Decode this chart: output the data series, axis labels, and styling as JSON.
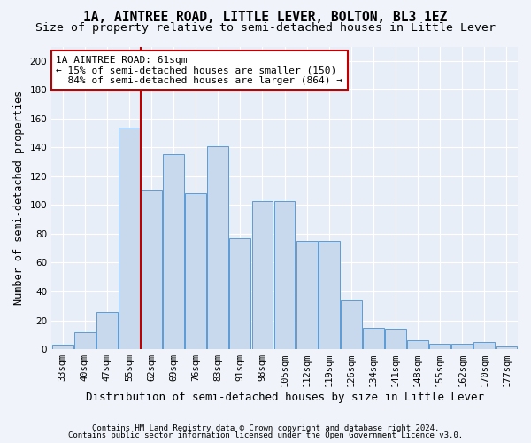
{
  "title_line1": "1A, AINTREE ROAD, LITTLE LEVER, BOLTON, BL3 1EZ",
  "title_line2": "Size of property relative to semi-detached houses in Little Lever",
  "xlabel": "Distribution of semi-detached houses by size in Little Lever",
  "ylabel": "Number of semi-detached properties",
  "footnote1": "Contains HM Land Registry data © Crown copyright and database right 2024.",
  "footnote2": "Contains public sector information licensed under the Open Government Licence v3.0.",
  "bar_labels": [
    "33sqm",
    "40sqm",
    "47sqm",
    "55sqm",
    "62sqm",
    "69sqm",
    "76sqm",
    "83sqm",
    "91sqm",
    "98sqm",
    "105sqm",
    "112sqm",
    "119sqm",
    "126sqm",
    "134sqm",
    "141sqm",
    "148sqm",
    "155sqm",
    "162sqm",
    "170sqm",
    "177sqm"
  ],
  "bar_values": [
    3,
    12,
    26,
    154,
    110,
    135,
    108,
    141,
    77,
    103,
    103,
    75,
    75,
    34,
    15,
    14,
    6,
    4,
    4,
    5,
    2
  ],
  "bar_color": "#c9d9ed",
  "bar_edge_color": "#5b9bd5",
  "property_label": "1A AINTREE ROAD: 61sqm",
  "pct_smaller": 15,
  "pct_larger": 84,
  "count_smaller": 150,
  "count_larger": 864,
  "vline_x_index": 4,
  "vline_color": "#c00000",
  "annotation_box_color": "#c00000",
  "plot_bg_color": "#e8eef7",
  "fig_bg_color": "#f0f4fa",
  "ylim": [
    0,
    210
  ],
  "yticks": [
    0,
    20,
    40,
    60,
    80,
    100,
    120,
    140,
    160,
    180,
    200
  ],
  "grid_color": "#ffffff",
  "title_fontsize": 10.5,
  "subtitle_fontsize": 9.5,
  "tick_fontsize": 7.5,
  "ylabel_fontsize": 8.5,
  "xlabel_fontsize": 9,
  "annotation_fontsize": 8,
  "footnote_fontsize": 6.5
}
